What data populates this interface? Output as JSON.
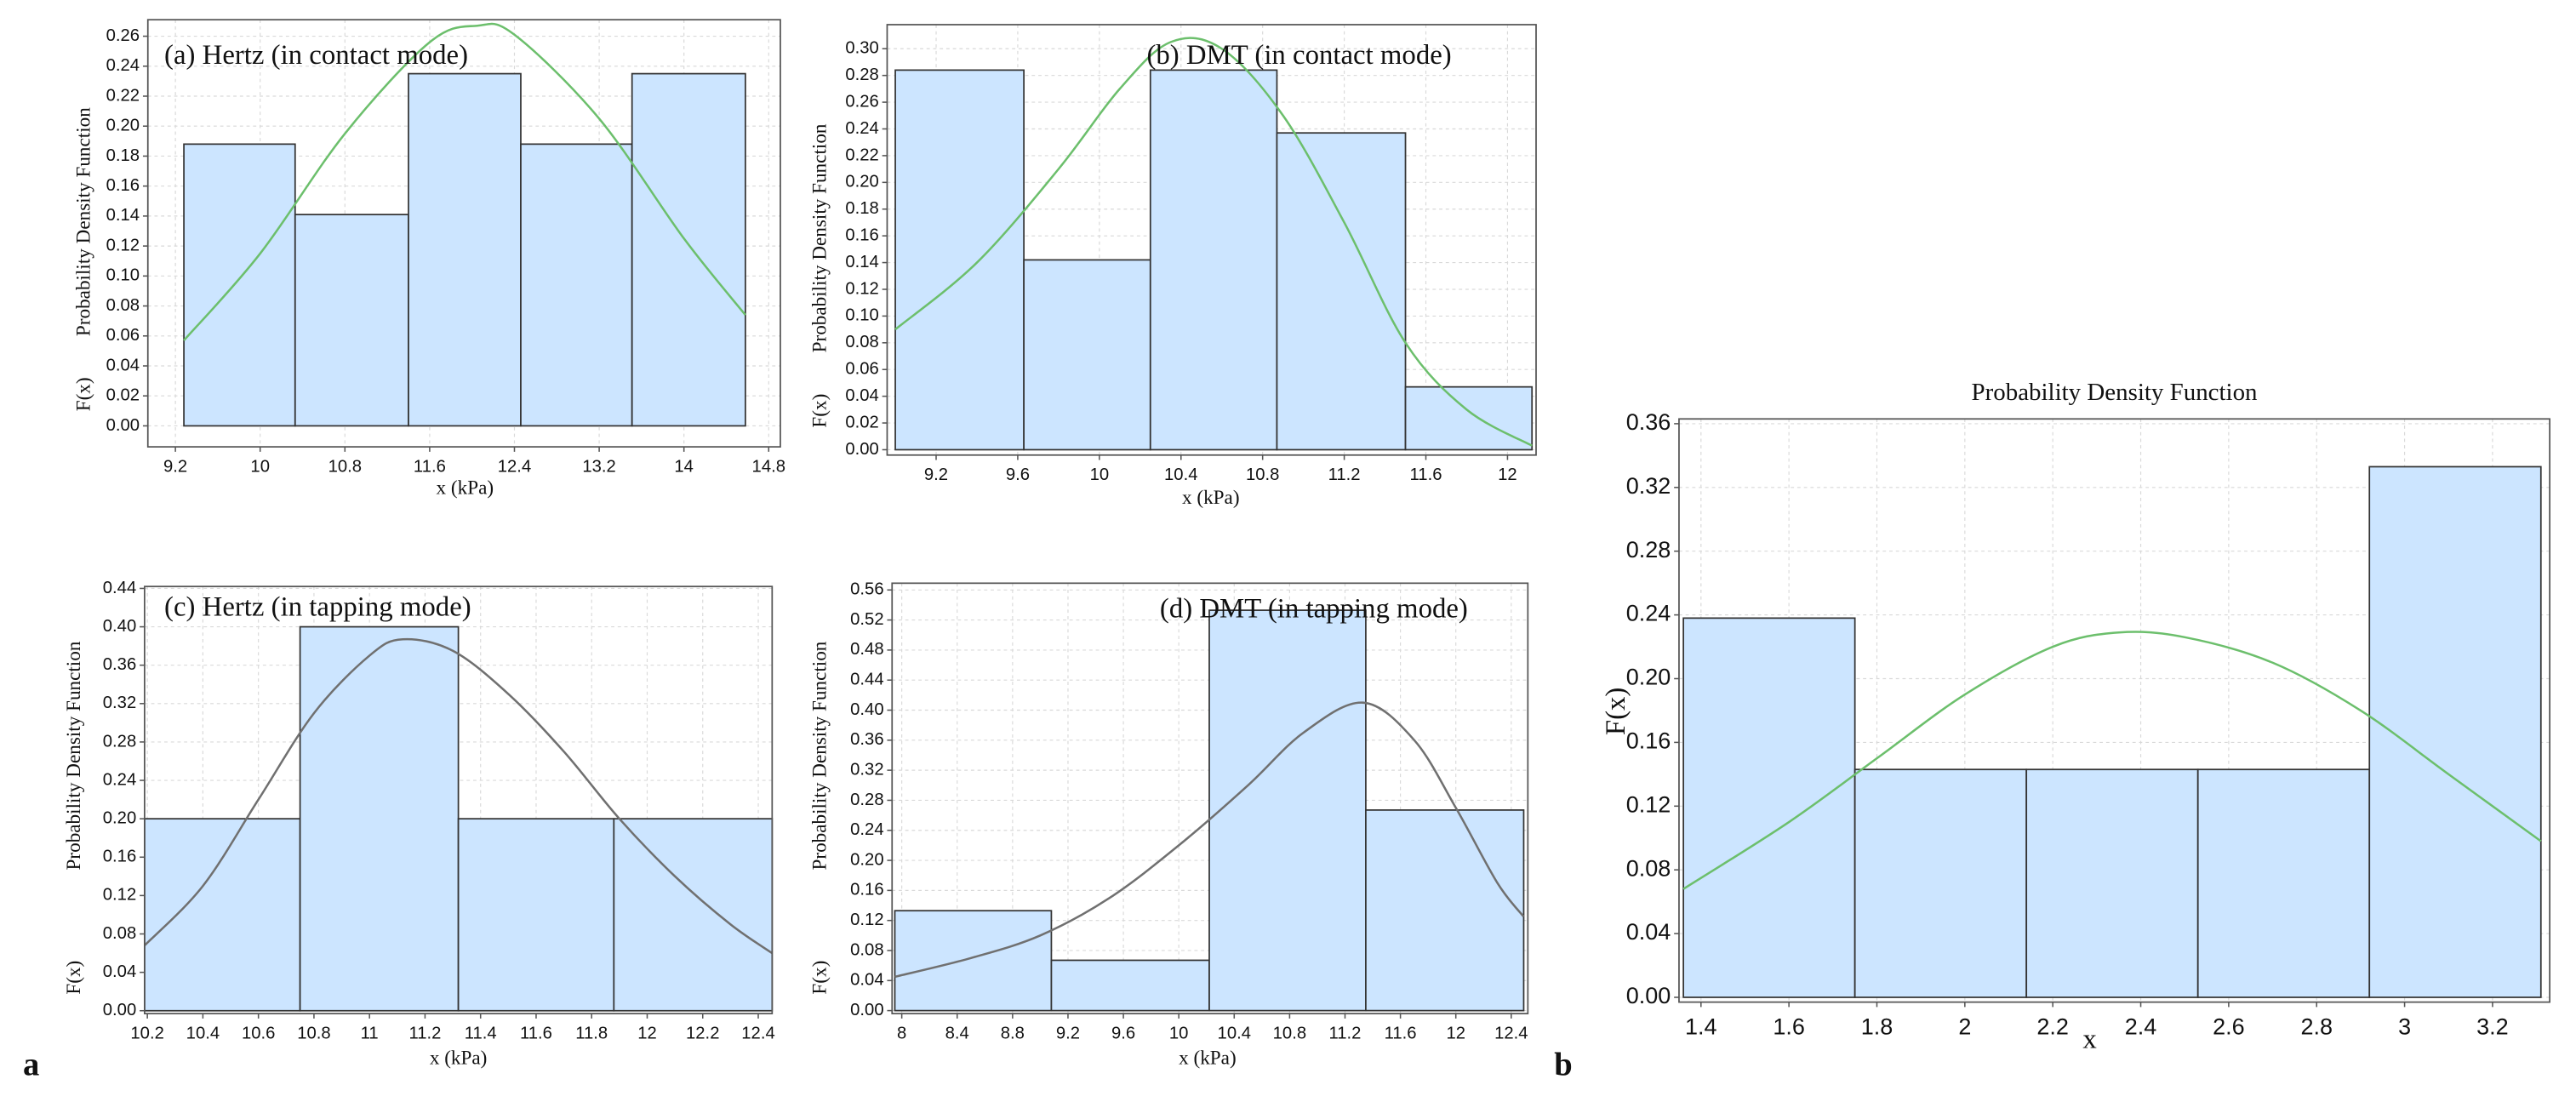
{
  "panel_labels": [
    "a",
    "b"
  ],
  "chart_data": [
    {
      "type": "histogram",
      "title": "(a) Hertz (in contact mode)",
      "xlabel": "x (kPa)",
      "ylabel": [
        "F(x)",
        "Probability Density Function"
      ],
      "bins": [
        9.28,
        10.33,
        11.4,
        12.46,
        13.51,
        14.58
      ],
      "values": [
        0.188,
        0.141,
        0.235,
        0.188,
        0.235
      ],
      "color": "#cce5ff",
      "curve": {
        "x": [
          9.28,
          10,
          10.8,
          11.6,
          12.05,
          12.4,
          13.2,
          14,
          14.58
        ],
        "y": [
          0.057,
          0.115,
          0.195,
          0.256,
          0.267,
          0.261,
          0.205,
          0.125,
          0.074
        ]
      },
      "curve_color": "#6cbf6c",
      "xlim": [
        8.94,
        14.91
      ],
      "ylim": [
        -0.014,
        0.271
      ],
      "grid": true,
      "xticks": [
        9.2,
        10,
        10.8,
        11.6,
        12.4,
        13.2,
        14,
        14.8
      ],
      "yticks": [
        {
          "value": 0,
          "label": "0.00"
        },
        {
          "value": 0.02,
          "label": "0.02"
        },
        {
          "value": 0.04,
          "label": "0.04"
        },
        {
          "value": 0.06,
          "label": "0.06"
        },
        {
          "value": 0.08,
          "label": "0.08"
        },
        {
          "value": 0.1,
          "label": "0.10"
        },
        {
          "value": 0.12,
          "label": "0.12"
        },
        {
          "value": 0.14,
          "label": "0.14"
        },
        {
          "value": 0.16,
          "label": "0.16"
        },
        {
          "value": 0.18,
          "label": "0.18"
        },
        {
          "value": 0.2,
          "label": "0.20"
        },
        {
          "value": 0.22,
          "label": "0.22"
        },
        {
          "value": 0.24,
          "label": "0.24"
        },
        {
          "value": 0.26,
          "label": "0.26"
        }
      ]
    },
    {
      "type": "histogram",
      "title": "(b) DMT (in contact mode)",
      "xlabel": "x (kPa)",
      "ylabel": [
        "F(x)",
        "Probability Density Function"
      ],
      "bins": [
        9.0,
        9.63,
        10.25,
        10.87,
        11.5,
        12.12
      ],
      "values": [
        0.284,
        0.142,
        0.284,
        0.237,
        0.047
      ],
      "color": "#cce5ff",
      "curve": {
        "x": [
          9.0,
          9.4,
          9.8,
          10.1,
          10.35,
          10.6,
          10.9,
          11.2,
          11.5,
          11.8,
          12.12
        ],
        "y": [
          0.09,
          0.14,
          0.21,
          0.27,
          0.305,
          0.3,
          0.25,
          0.17,
          0.08,
          0.03,
          0.003
        ]
      },
      "curve_color": "#6cbf6c",
      "xlim": [
        8.96,
        12.14
      ],
      "ylim": [
        -0.004,
        0.318
      ],
      "grid": true,
      "xticks": [
        9.2,
        9.6,
        10,
        10.4,
        10.8,
        11.2,
        11.6,
        12
      ],
      "yticks": [
        {
          "value": 0,
          "label": "0.00"
        },
        {
          "value": 0.02,
          "label": "0.02"
        },
        {
          "value": 0.04,
          "label": "0.04"
        },
        {
          "value": 0.06,
          "label": "0.06"
        },
        {
          "value": 0.08,
          "label": "0.08"
        },
        {
          "value": 0.1,
          "label": "0.10"
        },
        {
          "value": 0.12,
          "label": "0.12"
        },
        {
          "value": 0.14,
          "label": "0.14"
        },
        {
          "value": 0.16,
          "label": "0.16"
        },
        {
          "value": 0.18,
          "label": "0.18"
        },
        {
          "value": 0.2,
          "label": "0.20"
        },
        {
          "value": 0.22,
          "label": "0.22"
        },
        {
          "value": 0.24,
          "label": "0.24"
        },
        {
          "value": 0.26,
          "label": "0.26"
        },
        {
          "value": 0.28,
          "label": "0.28"
        },
        {
          "value": 0.3,
          "label": "0.30"
        }
      ]
    },
    {
      "type": "histogram",
      "title": "(c) Hertz (in tapping mode)",
      "xlabel": "x (kPa)",
      "ylabel": [
        "F(x)",
        "Probability Density Function"
      ],
      "bins": [
        10.19,
        10.75,
        11.32,
        11.88,
        12.45
      ],
      "values": [
        0.2,
        0.4,
        0.2,
        0.2
      ],
      "color": "#cce5ff",
      "curve": {
        "x": [
          10.19,
          10.4,
          10.6,
          10.8,
          11.0,
          11.12,
          11.3,
          11.5,
          11.7,
          11.9,
          12.1,
          12.3,
          12.45
        ],
        "y": [
          0.068,
          0.13,
          0.22,
          0.31,
          0.37,
          0.387,
          0.375,
          0.33,
          0.27,
          0.2,
          0.14,
          0.09,
          0.06
        ]
      },
      "curve_color": "#707070",
      "xlim": [
        10.19,
        12.45
      ],
      "ylim": [
        -0.003,
        0.442
      ],
      "grid": true,
      "xticks": [
        10.2,
        10.4,
        10.6,
        10.8,
        11,
        11.2,
        11.4,
        11.6,
        11.8,
        12,
        12.2,
        12.4
      ],
      "yticks": [
        {
          "value": 0,
          "label": "0.00"
        },
        {
          "value": 0.04,
          "label": "0.04"
        },
        {
          "value": 0.08,
          "label": "0.08"
        },
        {
          "value": 0.12,
          "label": "0.12"
        },
        {
          "value": 0.16,
          "label": "0.16"
        },
        {
          "value": 0.2,
          "label": "0.20"
        },
        {
          "value": 0.24,
          "label": "0.24"
        },
        {
          "value": 0.28,
          "label": "0.28"
        },
        {
          "value": 0.32,
          "label": "0.32"
        },
        {
          "value": 0.36,
          "label": "0.36"
        },
        {
          "value": 0.4,
          "label": "0.40"
        },
        {
          "value": 0.44,
          "label": "0.44"
        }
      ]
    },
    {
      "type": "histogram",
      "title": "(d) DMT (in tapping mode)",
      "xlabel": "x (kPa)",
      "ylabel": [
        "F(x)",
        "Probability Density Function"
      ],
      "bins": [
        7.95,
        9.08,
        10.22,
        11.35,
        12.49
      ],
      "values": [
        0.133,
        0.067,
        0.533,
        0.267
      ],
      "color": "#cce5ff",
      "curve": {
        "x": [
          7.95,
          8.5,
          9.0,
          9.5,
          10.0,
          10.5,
          10.9,
          11.33,
          11.7,
          12.0,
          12.3,
          12.49
        ],
        "y": [
          0.045,
          0.07,
          0.1,
          0.15,
          0.22,
          0.3,
          0.37,
          0.41,
          0.36,
          0.27,
          0.17,
          0.125
        ]
      },
      "curve_color": "#707070",
      "xlim": [
        7.93,
        12.52
      ],
      "ylim": [
        -0.004,
        0.569
      ],
      "grid": true,
      "xticks": [
        8,
        8.4,
        8.8,
        9.2,
        9.6,
        10,
        10.4,
        10.8,
        11.2,
        11.6,
        12,
        12.4
      ],
      "yticks": [
        {
          "value": 0,
          "label": "0.00"
        },
        {
          "value": 0.04,
          "label": "0.04"
        },
        {
          "value": 0.08,
          "label": "0.08"
        },
        {
          "value": 0.12,
          "label": "0.12"
        },
        {
          "value": 0.16,
          "label": "0.16"
        },
        {
          "value": 0.2,
          "label": "0.20"
        },
        {
          "value": 0.24,
          "label": "0.24"
        },
        {
          "value": 0.28,
          "label": "0.28"
        },
        {
          "value": 0.32,
          "label": "0.32"
        },
        {
          "value": 0.36,
          "label": "0.36"
        },
        {
          "value": 0.4,
          "label": "0.40"
        },
        {
          "value": 0.44,
          "label": "0.44"
        },
        {
          "value": 0.48,
          "label": "0.48"
        },
        {
          "value": 0.52,
          "label": "0.52"
        },
        {
          "value": 0.56,
          "label": "0.56"
        }
      ]
    },
    {
      "type": "histogram",
      "title": "Probability Density Function",
      "xlabel": "x",
      "ylabel": [
        "F(x)"
      ],
      "bins": [
        1.36,
        1.75,
        2.14,
        2.53,
        2.92,
        3.31
      ],
      "values": [
        0.238,
        0.143,
        0.143,
        0.143,
        0.333
      ],
      "color": "#cce5ff",
      "curve": {
        "x": [
          1.36,
          1.6,
          1.8,
          2.0,
          2.2,
          2.35,
          2.5,
          2.7,
          2.9,
          3.1,
          3.31
        ],
        "y": [
          0.068,
          0.11,
          0.15,
          0.19,
          0.22,
          0.229,
          0.226,
          0.21,
          0.18,
          0.14,
          0.098
        ]
      },
      "curve_color": "#6cbf6c",
      "xlim": [
        1.35,
        3.33
      ],
      "ylim": [
        -0.003,
        0.363
      ],
      "grid": true,
      "xticks": [
        1.4,
        1.6,
        1.8,
        2,
        2.2,
        2.4,
        2.6,
        2.8,
        3,
        3.2
      ],
      "yticks": [
        {
          "value": 0,
          "label": "0.00"
        },
        {
          "value": 0.04,
          "label": "0.04"
        },
        {
          "value": 0.08,
          "label": "0.08"
        },
        {
          "value": 0.12,
          "label": "0.12"
        },
        {
          "value": 0.16,
          "label": "0.16"
        },
        {
          "value": 0.2,
          "label": "0.20"
        },
        {
          "value": 0.24,
          "label": "0.24"
        },
        {
          "value": 0.28,
          "label": "0.28"
        },
        {
          "value": 0.32,
          "label": "0.32"
        },
        {
          "value": 0.36,
          "label": "0.36"
        }
      ]
    }
  ]
}
